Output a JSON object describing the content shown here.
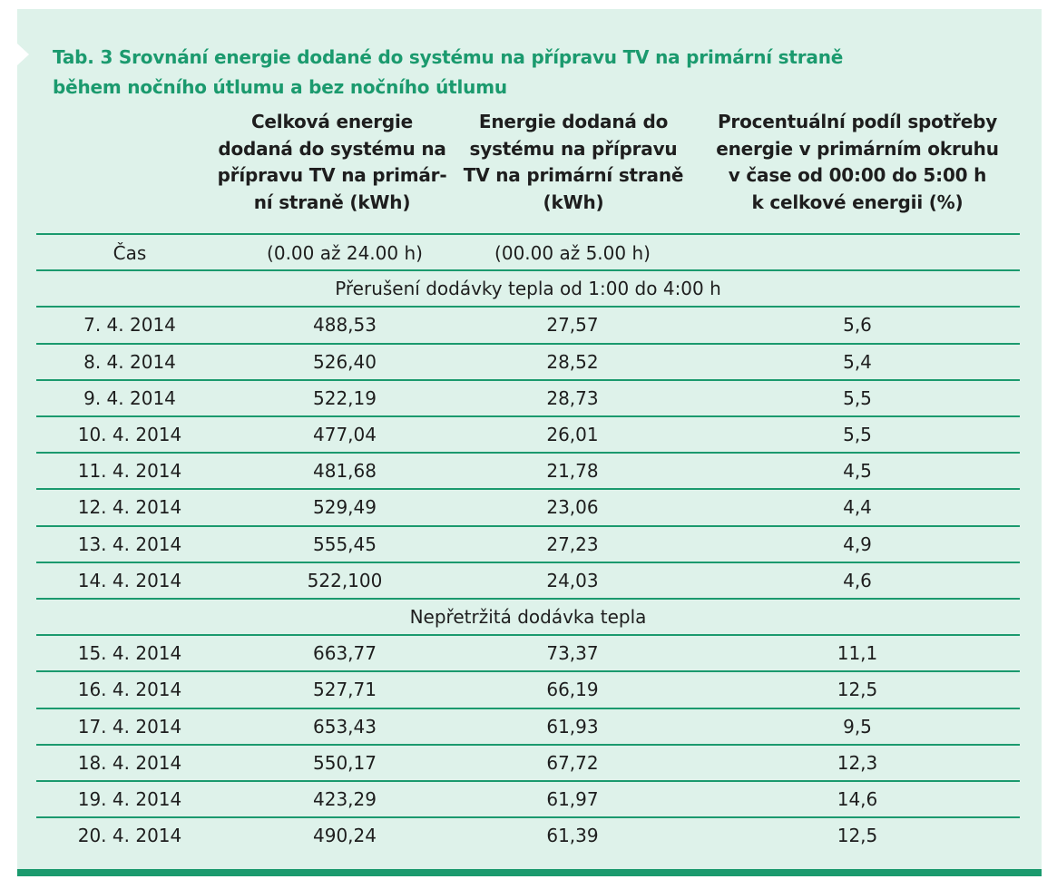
{
  "title_line1": "Tab. 3 Srovnání energie dodané do systému na přípravu TV na primární straně",
  "title_line2": "během nočního útlumu a bez nočního útlumu",
  "headers": {
    "col2": [
      "Celková energie",
      "dodaná do systému na",
      "přípravu TV na primár-",
      "ní straně (kWh)"
    ],
    "col3": [
      "Energie dodaná do",
      "systému na přípravu",
      "TV na primární straně",
      "(kWh)"
    ],
    "col4": [
      "Procentuální podíl spotřeby",
      "energie v primárním okruhu",
      "v čase od 00:00 do 5:00 h",
      "k celkové energii (%)"
    ]
  },
  "subheader": {
    "col1": "Čas",
    "col2": "(0.00 až 24.00 h)",
    "col3": "(00.00 až 5.00 h)"
  },
  "sections": [
    {
      "label": "Přerušení dodávky tepla od 1:00 do 4:00 h",
      "rows": [
        [
          "7. 4. 2014",
          "488,53",
          "27,57",
          "5,6"
        ],
        [
          "8. 4. 2014",
          "526,40",
          "28,52",
          "5,4"
        ],
        [
          "9. 4. 2014",
          "522,19",
          "28,73",
          "5,5"
        ],
        [
          "10. 4. 2014",
          "477,04",
          "26,01",
          "5,5"
        ],
        [
          "11. 4. 2014",
          "481,68",
          "21,78",
          "4,5"
        ],
        [
          "12. 4. 2014",
          "529,49",
          "23,06",
          "4,4"
        ],
        [
          "13. 4. 2014",
          "555,45",
          "27,23",
          "4,9"
        ],
        [
          "14. 4. 2014",
          "522,100",
          "24,03",
          "4,6"
        ]
      ]
    },
    {
      "label": "Nepřetržitá dodávka tepla",
      "rows": [
        [
          "15. 4. 2014",
          "663,77",
          "73,37",
          "11,1"
        ],
        [
          "16. 4. 2014",
          "527,71",
          "66,19",
          "12,5"
        ],
        [
          "17. 4. 2014",
          "653,43",
          "61,93",
          "9,5"
        ],
        [
          "18. 4. 2014",
          "550,17",
          "67,72",
          "12,3"
        ],
        [
          "19. 4. 2014",
          "423,29",
          "61,97",
          "14,6"
        ],
        [
          "20. 4. 2014",
          "490,24",
          "61,39",
          "12,5"
        ]
      ]
    }
  ]
}
